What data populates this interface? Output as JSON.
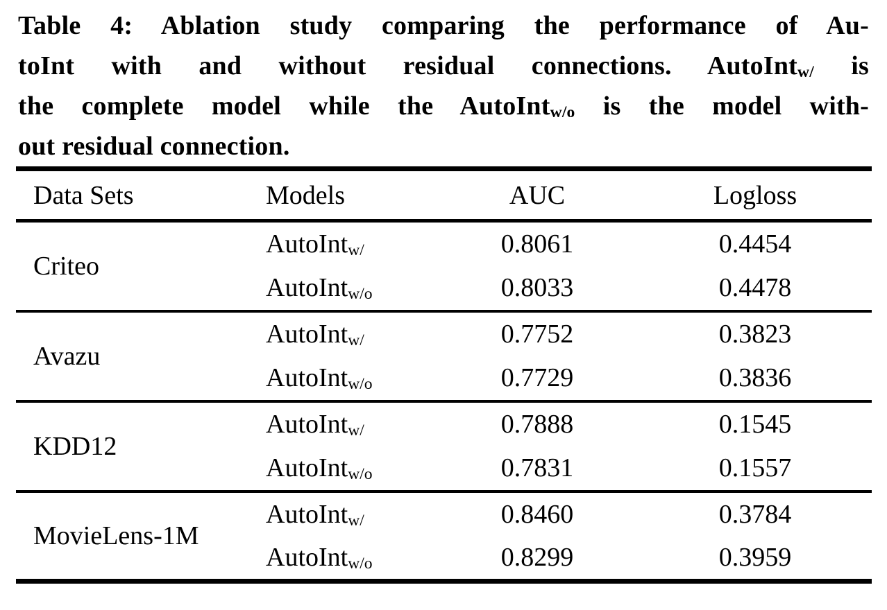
{
  "caption": {
    "label": "Table 4",
    "lines": [
      {
        "pre": "Table 4: Ablation study comparing the performance of Au-",
        "sub": "",
        "post": ""
      },
      {
        "pre": "toInt with and without residual connections. AutoInt",
        "sub": "w/",
        "post": " is"
      },
      {
        "pre": "the complete model while the AutoInt",
        "sub": "w/o",
        "post": " is the model with-"
      },
      {
        "pre": "out residual connection.",
        "sub": "",
        "post": ""
      }
    ]
  },
  "table": {
    "headers": {
      "datasets": "Data Sets",
      "models": "Models",
      "auc": "AUC",
      "logloss": "Logloss"
    },
    "groups": [
      {
        "dataset": "Criteo",
        "rows": [
          {
            "model_base": "AutoInt",
            "model_sub": "w/",
            "auc": "0.8061",
            "logloss": "0.4454"
          },
          {
            "model_base": "AutoInt",
            "model_sub": "w/o",
            "auc": "0.8033",
            "logloss": "0.4478"
          }
        ]
      },
      {
        "dataset": "Avazu",
        "rows": [
          {
            "model_base": "AutoInt",
            "model_sub": "w/",
            "auc": "0.7752",
            "logloss": "0.3823"
          },
          {
            "model_base": "AutoInt",
            "model_sub": "w/o",
            "auc": "0.7729",
            "logloss": "0.3836"
          }
        ]
      },
      {
        "dataset": "KDD12",
        "rows": [
          {
            "model_base": "AutoInt",
            "model_sub": "w/",
            "auc": "0.7888",
            "logloss": "0.1545"
          },
          {
            "model_base": "AutoInt",
            "model_sub": "w/o",
            "auc": "0.7831",
            "logloss": "0.1557"
          }
        ]
      },
      {
        "dataset": "MovieLens-1M",
        "rows": [
          {
            "model_base": "AutoInt",
            "model_sub": "w/",
            "auc": "0.8460",
            "logloss": "0.3784"
          },
          {
            "model_base": "AutoInt",
            "model_sub": "w/o",
            "auc": "0.8299",
            "logloss": "0.3959"
          }
        ]
      }
    ]
  },
  "colors": {
    "text": "#000000",
    "background": "#ffffff",
    "rule": "#000000"
  }
}
